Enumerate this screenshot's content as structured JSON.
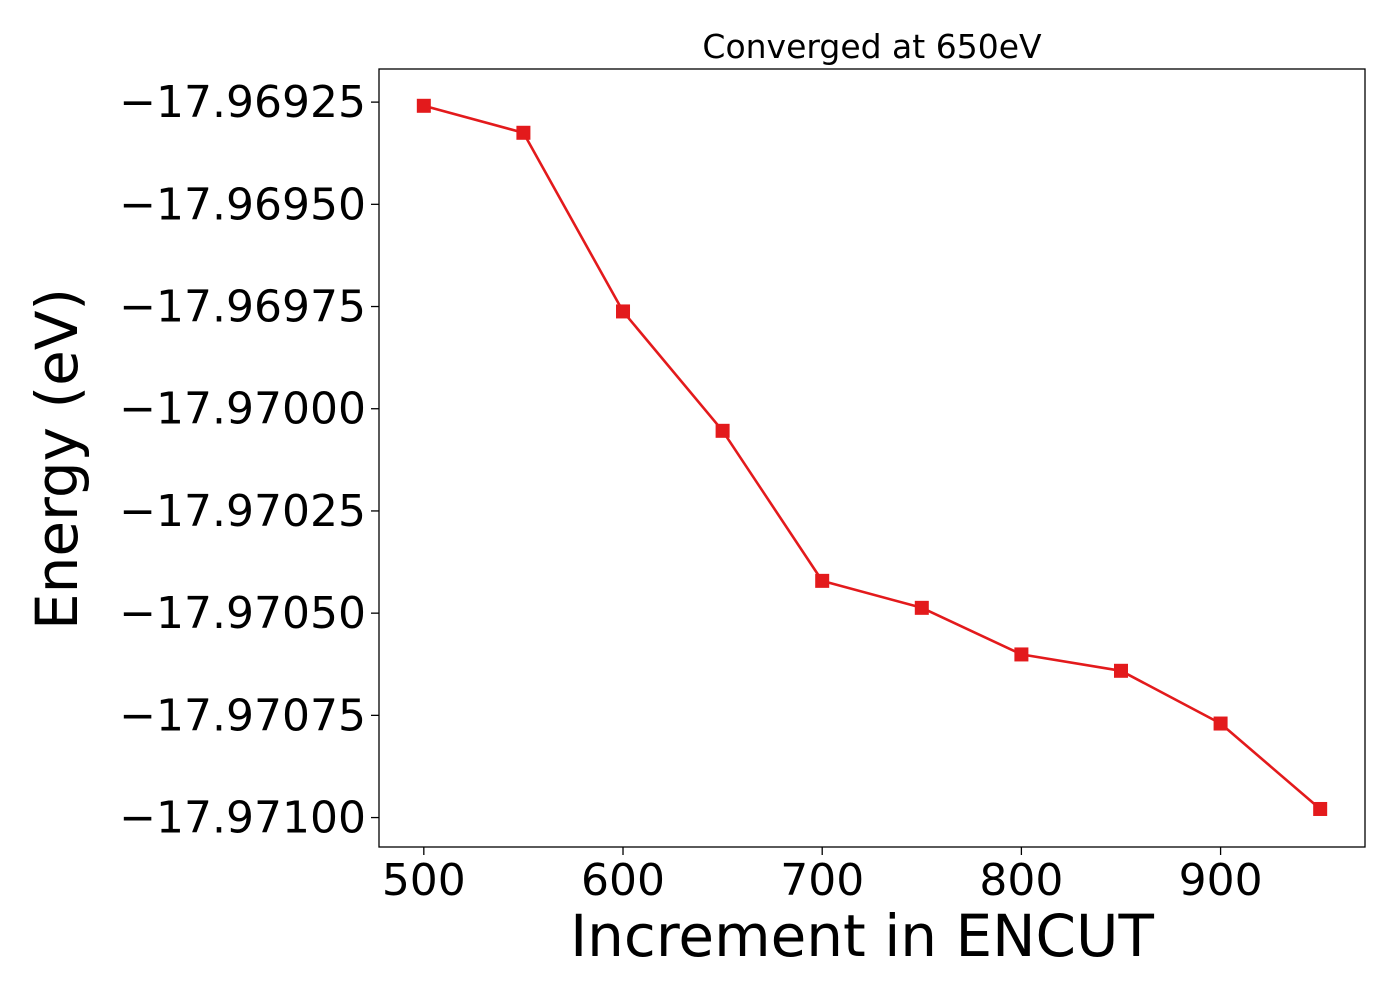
{
  "chart_data": {
    "type": "line",
    "title": "Converged at 650eV",
    "xlabel": "Increment in ENCUT",
    "ylabel": "Energy (eV)",
    "x": [
      500,
      550,
      600,
      650,
      700,
      750,
      800,
      850,
      900,
      950
    ],
    "series": [
      {
        "values": [
          -17.969259,
          -17.969325,
          -17.969762,
          -17.970054,
          -17.970421,
          -17.970487,
          -17.970601,
          -17.970641,
          -17.97077,
          -17.970979
        ],
        "color": "#e31a1c",
        "marker": "square"
      }
    ],
    "xticks": [
      500,
      600,
      700,
      800,
      900
    ],
    "xtick_labels": [
      "500",
      "600",
      "700",
      "800",
      "900"
    ],
    "yticks": [
      -17.96925,
      -17.9695,
      -17.96975,
      -17.97,
      -17.97025,
      -17.9705,
      -17.97075,
      -17.971
    ],
    "ytick_labels": [
      "−17.96925",
      "−17.96950",
      "−17.96975",
      "−17.97000",
      "−17.97025",
      "−17.97050",
      "−17.97075",
      "−17.97100"
    ],
    "xlim": [
      477.5,
      972.5
    ],
    "ylim": [
      -17.971072,
      -17.969169
    ],
    "grid": false,
    "legend": "none"
  }
}
